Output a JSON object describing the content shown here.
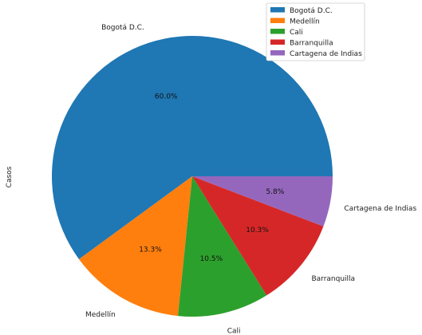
{
  "chart_data": {
    "type": "pie",
    "ylabel": "Casos",
    "start_angle_deg": 0,
    "direction": "counterclockwise",
    "legend_position": "top-right",
    "slices": [
      {
        "label": "Bogotá D.C.",
        "percent": 60.0,
        "pct_label": "60.0%",
        "color": "#1f77b4"
      },
      {
        "label": "Medellín",
        "percent": 13.3,
        "pct_label": "13.3%",
        "color": "#ff7f0e"
      },
      {
        "label": "Cali",
        "percent": 10.5,
        "pct_label": "10.5%",
        "color": "#2ca02c"
      },
      {
        "label": "Barranquilla",
        "percent": 10.3,
        "pct_label": "10.3%",
        "color": "#d62728"
      },
      {
        "label": "Cartagena de Indias",
        "percent": 5.8,
        "pct_label": "5.8%",
        "color": "#9467bd"
      }
    ]
  }
}
